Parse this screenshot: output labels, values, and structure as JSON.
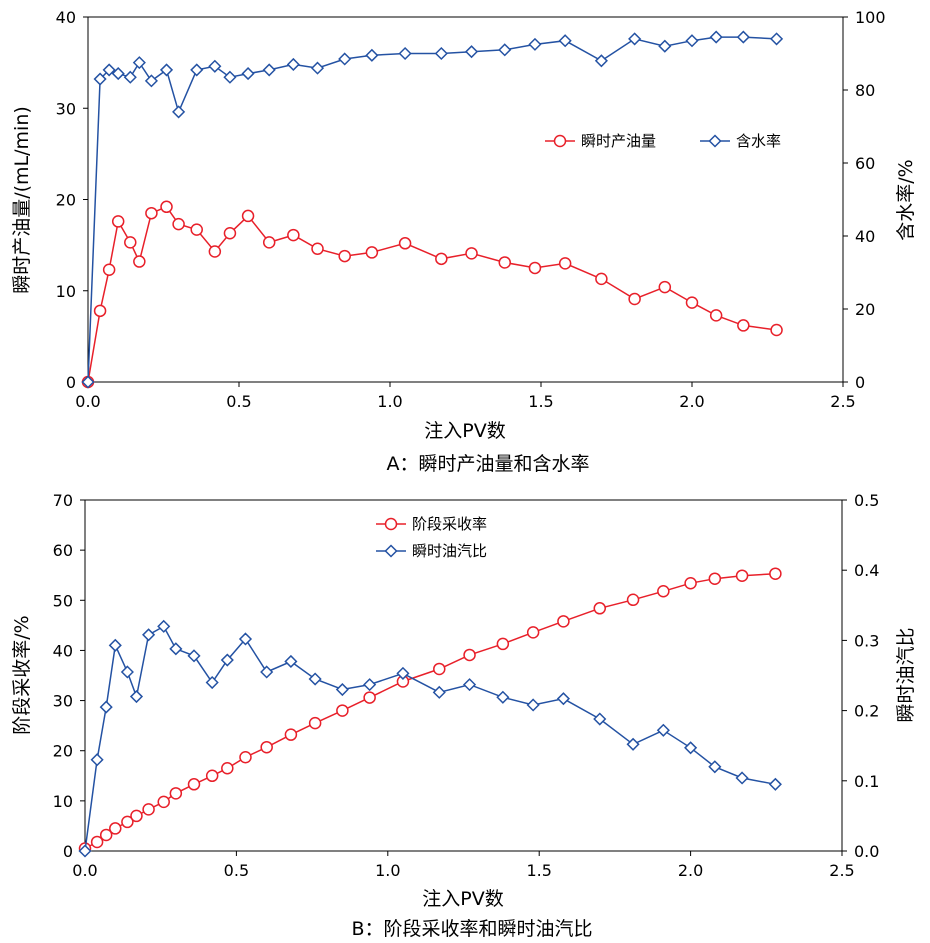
{
  "chart_data": [
    {
      "type": "line",
      "caption": "A：瞬时产油量和含水率",
      "xlabel": "注入PV数",
      "ylabel": "瞬时产油量/(mL/min)",
      "y2label": "含水率/%",
      "xlim": [
        0,
        2.5
      ],
      "ylim": [
        0,
        40
      ],
      "y2lim": [
        0,
        100
      ],
      "xticks": [
        "0.0",
        "0.5",
        "1.0",
        "1.5",
        "2.0",
        "2.5"
      ],
      "yticks": [
        "0",
        "10",
        "20",
        "30",
        "40"
      ],
      "y2ticks": [
        "0",
        "20",
        "40",
        "60",
        "80",
        "100"
      ],
      "legend_position": "right-middle",
      "x": [
        0.0,
        0.04,
        0.07,
        0.1,
        0.14,
        0.17,
        0.21,
        0.26,
        0.3,
        0.36,
        0.42,
        0.47,
        0.53,
        0.6,
        0.68,
        0.76,
        0.85,
        0.94,
        1.05,
        1.17,
        1.27,
        1.38,
        1.48,
        1.58,
        1.7,
        1.81,
        1.91,
        2.0,
        2.08,
        2.17,
        2.28
      ],
      "series": [
        {
          "name": "瞬时产油量",
          "axis": "left",
          "color": "#e8202a",
          "marker": "circle",
          "values": [
            0.0,
            7.8,
            12.3,
            17.6,
            15.3,
            13.2,
            18.5,
            19.2,
            17.3,
            16.7,
            14.3,
            16.3,
            18.2,
            15.3,
            16.1,
            14.6,
            13.8,
            14.2,
            15.2,
            13.5,
            14.1,
            13.1,
            12.5,
            13.0,
            11.3,
            9.1,
            10.4,
            8.7,
            7.3,
            6.2,
            5.7
          ]
        },
        {
          "name": "含水率",
          "axis": "right",
          "color": "#2452a3",
          "marker": "diamond",
          "values": [
            0.0,
            83.0,
            85.5,
            84.5,
            83.5,
            87.5,
            82.5,
            85.5,
            74.0,
            85.5,
            86.5,
            83.5,
            84.5,
            85.5,
            87.0,
            86.0,
            88.5,
            89.5,
            90.0,
            90.0,
            90.5,
            91.0,
            92.5,
            93.5,
            88.0,
            94.0,
            92.0,
            93.5,
            94.5,
            94.5,
            94.0
          ]
        }
      ]
    },
    {
      "type": "line",
      "caption": "B：阶段采收率和瞬时油汽比",
      "xlabel": "注入PV数",
      "ylabel": "阶段采收率/%",
      "y2label": "瞬时油汽比",
      "xlim": [
        0,
        2.5
      ],
      "ylim": [
        0,
        70
      ],
      "y2lim": [
        0,
        0.5
      ],
      "xticks": [
        "0.0",
        "0.5",
        "1.0",
        "1.5",
        "2.0",
        "2.5"
      ],
      "yticks": [
        "0",
        "10",
        "20",
        "30",
        "40",
        "50",
        "60",
        "70"
      ],
      "y2ticks": [
        "0.0",
        "0.1",
        "0.2",
        "0.3",
        "0.4",
        "0.5"
      ],
      "legend_position": "top-center",
      "x": [
        0.0,
        0.04,
        0.07,
        0.1,
        0.14,
        0.17,
        0.21,
        0.26,
        0.3,
        0.36,
        0.42,
        0.47,
        0.53,
        0.6,
        0.68,
        0.76,
        0.85,
        0.94,
        1.05,
        1.17,
        1.27,
        1.38,
        1.48,
        1.58,
        1.7,
        1.81,
        1.91,
        2.0,
        2.08,
        2.17,
        2.28
      ],
      "series": [
        {
          "name": "阶段采收率",
          "axis": "left",
          "color": "#e8202a",
          "marker": "circle",
          "values": [
            0.5,
            1.8,
            3.2,
            4.5,
            5.8,
            7.0,
            8.3,
            9.8,
            11.5,
            13.3,
            15.0,
            16.5,
            18.7,
            20.7,
            23.2,
            25.5,
            28.0,
            30.6,
            33.8,
            36.3,
            39.1,
            41.3,
            43.6,
            45.8,
            48.4,
            50.1,
            51.8,
            53.4,
            54.3,
            54.9,
            55.3
          ]
        },
        {
          "name": "瞬时油汽比",
          "axis": "right",
          "color": "#2452a3",
          "marker": "diamond",
          "values": [
            0.0,
            0.13,
            0.205,
            0.293,
            0.255,
            0.22,
            0.308,
            0.32,
            0.288,
            0.278,
            0.24,
            0.272,
            0.302,
            0.255,
            0.27,
            0.245,
            0.23,
            0.237,
            0.253,
            0.226,
            0.237,
            0.219,
            0.208,
            0.217,
            0.188,
            0.152,
            0.172,
            0.147,
            0.12,
            0.104,
            0.095
          ]
        }
      ]
    }
  ]
}
